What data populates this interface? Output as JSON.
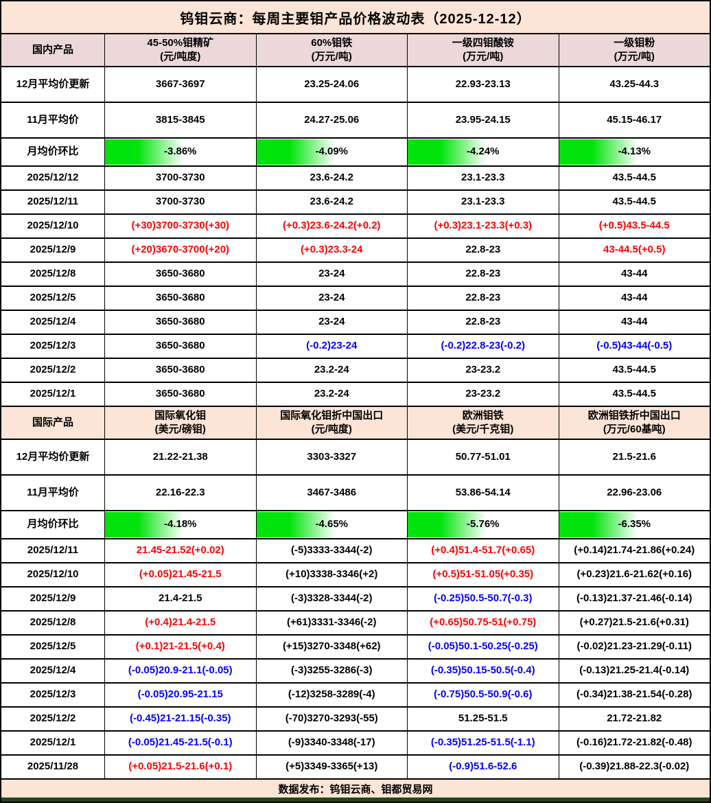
{
  "title": "钨钼云商：每周主要钼产品价格波动表（2025-12-12）",
  "footer": "数据发布：钨钼云商、钼都贸易网",
  "colors": {
    "red": "#ff0000",
    "blue": "#0000ff",
    "black": "#000000",
    "title_bg": "#fce4d6",
    "footer_bg": "#fce4d6",
    "bar_green": "#00e30b",
    "bottom_strip": "#26451a"
  },
  "sections": [
    {
      "name": "domestic",
      "header_bg": "#ecd7d9",
      "header": {
        "label": "国内产品",
        "columns": [
          "45-50%钼精矿\n(元/吨度)",
          "60%钼铁\n(万元/吨)",
          "一级四钼酸铵\n(万元/吨)",
          "一级钼粉\n(万元/吨)"
        ]
      },
      "rows": [
        {
          "type": "avg",
          "label": "12月平均价更新",
          "cells": [
            {
              "t": "3667-3697",
              "c": "black"
            },
            {
              "t": "23.25-24.06",
              "c": "black"
            },
            {
              "t": "22.93-23.13",
              "c": "black"
            },
            {
              "t": "43.25-44.3",
              "c": "black"
            }
          ]
        },
        {
          "type": "avg",
          "label": "11月平均价",
          "cells": [
            {
              "t": "3815-3845",
              "c": "black"
            },
            {
              "t": "24.27-25.06",
              "c": "black"
            },
            {
              "t": "23.95-24.15",
              "c": "black"
            },
            {
              "t": "45.15-46.17",
              "c": "black"
            }
          ]
        },
        {
          "type": "ratio",
          "label": "月均价环比",
          "cells": [
            {
              "t": "-3.86%",
              "c": "black",
              "bar": true
            },
            {
              "t": "-4.09%",
              "c": "black",
              "bar": true
            },
            {
              "t": "-4.24%",
              "c": "black",
              "bar": true
            },
            {
              "t": "-4.13%",
              "c": "black",
              "bar": true
            }
          ]
        },
        {
          "type": "date",
          "label": "2025/12/12",
          "cells": [
            {
              "t": "3700-3730",
              "c": "black"
            },
            {
              "t": "23.6-24.2",
              "c": "black"
            },
            {
              "t": "23.1-23.3",
              "c": "black"
            },
            {
              "t": "43.5-44.5",
              "c": "black"
            }
          ]
        },
        {
          "type": "date",
          "label": "2025/12/11",
          "cells": [
            {
              "t": "3700-3730",
              "c": "black"
            },
            {
              "t": "23.6-24.2",
              "c": "black"
            },
            {
              "t": "23.1-23.3",
              "c": "black"
            },
            {
              "t": "43.5-44.5",
              "c": "black"
            }
          ]
        },
        {
          "type": "date",
          "label": "2025/12/10",
          "cells": [
            {
              "t": "(+30)3700-3730(+30)",
              "c": "red"
            },
            {
              "t": "(+0.3)23.6-24.2(+0.2)",
              "c": "red"
            },
            {
              "t": "(+0.3)23.1-23.3(+0.3)",
              "c": "red"
            },
            {
              "t": "(+0.5)43.5-44.5",
              "c": "red"
            }
          ]
        },
        {
          "type": "date",
          "label": "2025/12/9",
          "cells": [
            {
              "t": "(+20)3670-3700(+20)",
              "c": "red"
            },
            {
              "t": "(+0.3)23.3-24",
              "c": "red"
            },
            {
              "t": "22.8-23",
              "c": "black"
            },
            {
              "t": "43-44.5(+0.5)",
              "c": "red"
            }
          ]
        },
        {
          "type": "date",
          "label": "2025/12/8",
          "cells": [
            {
              "t": "3650-3680",
              "c": "black"
            },
            {
              "t": "23-24",
              "c": "black"
            },
            {
              "t": "22.8-23",
              "c": "black"
            },
            {
              "t": "43-44",
              "c": "black"
            }
          ]
        },
        {
          "type": "date",
          "label": "2025/12/5",
          "cells": [
            {
              "t": "3650-3680",
              "c": "black"
            },
            {
              "t": "23-24",
              "c": "black"
            },
            {
              "t": "22.8-23",
              "c": "black"
            },
            {
              "t": "43-44",
              "c": "black"
            }
          ]
        },
        {
          "type": "date",
          "label": "2025/12/4",
          "cells": [
            {
              "t": "3650-3680",
              "c": "black"
            },
            {
              "t": "23-24",
              "c": "black"
            },
            {
              "t": "22.8-23",
              "c": "black"
            },
            {
              "t": "43-44",
              "c": "black"
            }
          ]
        },
        {
          "type": "date",
          "label": "2025/12/3",
          "cells": [
            {
              "t": "3650-3680",
              "c": "black"
            },
            {
              "t": "(-0.2)23-24",
              "c": "blue"
            },
            {
              "t": "(-0.2)22.8-23(-0.2)",
              "c": "blue"
            },
            {
              "t": "(-0.5)43-44(-0.5)",
              "c": "blue"
            }
          ]
        },
        {
          "type": "date",
          "label": "2025/12/2",
          "cells": [
            {
              "t": "3650-3680",
              "c": "black"
            },
            {
              "t": "23.2-24",
              "c": "black"
            },
            {
              "t": "23-23.2",
              "c": "black"
            },
            {
              "t": "43.5-44.5",
              "c": "black"
            }
          ]
        },
        {
          "type": "date",
          "label": "2025/12/1",
          "cells": [
            {
              "t": "3650-3680",
              "c": "black"
            },
            {
              "t": "23.2-24",
              "c": "black"
            },
            {
              "t": "23-23.2",
              "c": "black"
            },
            {
              "t": "43.5-44.5",
              "c": "black"
            }
          ]
        }
      ]
    },
    {
      "name": "international",
      "header_bg": "#fce4d6",
      "header": {
        "label": "国际产品",
        "columns": [
          "国际氧化钼\n(美元/磅钼)",
          "国际氧化钼折中国出口\n(元/吨度)",
          "欧洲钼铁\n(美元/千克钼)",
          "欧洲钼铁折中国出口\n(万元/60基吨)"
        ]
      },
      "rows": [
        {
          "type": "avg",
          "label": "12月平均价更新",
          "cells": [
            {
              "t": "21.22-21.38",
              "c": "black"
            },
            {
              "t": "3303-3327",
              "c": "black"
            },
            {
              "t": "50.77-51.01",
              "c": "black"
            },
            {
              "t": "21.5-21.6",
              "c": "black"
            }
          ]
        },
        {
          "type": "avg",
          "label": "11月平均价",
          "cells": [
            {
              "t": "22.16-22.3",
              "c": "black"
            },
            {
              "t": "3467-3486",
              "c": "black"
            },
            {
              "t": "53.86-54.14",
              "c": "black"
            },
            {
              "t": "22.96-23.06",
              "c": "black"
            }
          ]
        },
        {
          "type": "ratio",
          "label": "月均价环比",
          "cells": [
            {
              "t": "-4.18%",
              "c": "black",
              "bar": true
            },
            {
              "t": "-4.65%",
              "c": "black",
              "bar": true
            },
            {
              "t": "-5.76%",
              "c": "black",
              "bar": true
            },
            {
              "t": "-6.35%",
              "c": "black",
              "bar": true
            }
          ]
        },
        {
          "type": "date",
          "label": "2025/12/11",
          "cells": [
            {
              "t": "21.45-21.52(+0.02)",
              "c": "red"
            },
            {
              "t": "(-5)3333-3344(-2)",
              "c": "black"
            },
            {
              "t": "(+0.4)51.4-51.7(+0.65)",
              "c": "red"
            },
            {
              "t": "(+0.14)21.74-21.86(+0.24)",
              "c": "black"
            }
          ]
        },
        {
          "type": "date",
          "label": "2025/12/10",
          "cells": [
            {
              "t": "(+0.05)21.45-21.5",
              "c": "red"
            },
            {
              "t": "(+10)3338-3346(+2)",
              "c": "black"
            },
            {
              "t": "(+0.5)51-51.05(+0.35)",
              "c": "red"
            },
            {
              "t": "(+0.23)21.6-21.62(+0.16)",
              "c": "black"
            }
          ]
        },
        {
          "type": "date",
          "label": "2025/12/9",
          "cells": [
            {
              "t": "21.4-21.5",
              "c": "black"
            },
            {
              "t": "(-3)3328-3344(-2)",
              "c": "black"
            },
            {
              "t": "(-0.25)50.5-50.7(-0.3)",
              "c": "blue"
            },
            {
              "t": "(-0.13)21.37-21.46(-0.14)",
              "c": "black"
            }
          ]
        },
        {
          "type": "date",
          "label": "2025/12/8",
          "cells": [
            {
              "t": "(+0.4)21.4-21.5",
              "c": "red"
            },
            {
              "t": "(+61)3331-3346(-2)",
              "c": "black"
            },
            {
              "t": "(+0.65)50.75-51(+0.75)",
              "c": "red"
            },
            {
              "t": "(+0.27)21.5-21.6(+0.31)",
              "c": "black"
            }
          ]
        },
        {
          "type": "date",
          "label": "2025/12/5",
          "cells": [
            {
              "t": "(+0.1)21-21.5(+0.4)",
              "c": "red"
            },
            {
              "t": "(+15)3270-3348(+62)",
              "c": "black"
            },
            {
              "t": "(-0.05)50.1-50.25(-0.25)",
              "c": "blue"
            },
            {
              "t": "(-0.02)21.23-21.29(-0.11)",
              "c": "black"
            }
          ]
        },
        {
          "type": "date",
          "label": "2025/12/4",
          "cells": [
            {
              "t": "(-0.05)20.9-21.1(-0.05)",
              "c": "blue"
            },
            {
              "t": "(-3)3255-3286(-3)",
              "c": "black"
            },
            {
              "t": "(-0.35)50.15-50.5(-0.4)",
              "c": "blue"
            },
            {
              "t": "(-0.13)21.25-21.4(-0.14)",
              "c": "black"
            }
          ]
        },
        {
          "type": "date",
          "label": "2025/12/3",
          "cells": [
            {
              "t": "(-0.05)20.95-21.15",
              "c": "blue"
            },
            {
              "t": "(-12)3258-3289(-4)",
              "c": "black"
            },
            {
              "t": "(-0.75)50.5-50.9(-0.6)",
              "c": "blue"
            },
            {
              "t": "(-0.34)21.38-21.54(-0.28)",
              "c": "black"
            }
          ]
        },
        {
          "type": "date",
          "label": "2025/12/2",
          "cells": [
            {
              "t": "(-0.45)21-21.15(-0.35)",
              "c": "blue"
            },
            {
              "t": "(-70)3270-3293(-55)",
              "c": "black"
            },
            {
              "t": "51.25-51.5",
              "c": "black"
            },
            {
              "t": "21.72-21.82",
              "c": "black"
            }
          ]
        },
        {
          "type": "date",
          "label": "2025/12/1",
          "cells": [
            {
              "t": "(-0.05)21.45-21.5(-0.1)",
              "c": "blue"
            },
            {
              "t": "(-9)3340-3348(-17)",
              "c": "black"
            },
            {
              "t": "(-0.35)51.25-51.5(-1.1)",
              "c": "blue"
            },
            {
              "t": "(-0.16)21.72-21.82(-0.48)",
              "c": "black"
            }
          ]
        },
        {
          "type": "date",
          "label": "2025/11/28",
          "cells": [
            {
              "t": "(+0.05)21.5-21.6(+0.1)",
              "c": "red"
            },
            {
              "t": "(+5)3349-3365(+13)",
              "c": "black"
            },
            {
              "t": "(-0.9)51.6-52.6",
              "c": "blue"
            },
            {
              "t": "(-0.39)21.88-22.3(-0.02)",
              "c": "black"
            }
          ]
        }
      ]
    }
  ]
}
